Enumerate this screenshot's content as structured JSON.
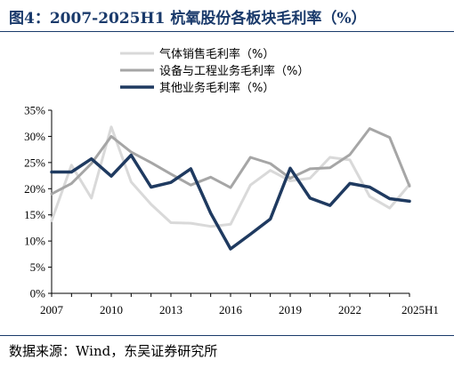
{
  "title": "图4：2007-2025H1 杭氧股份各板块毛利率（%）",
  "source": "数据来源：Wind，东吴证券研究所",
  "chart_data": {
    "type": "line",
    "x": [
      2007,
      2008,
      2009,
      2010,
      2011,
      2012,
      2013,
      2014,
      2015,
      2016,
      2017,
      2018,
      2019,
      2020,
      2021,
      2022,
      2023,
      2024,
      2025
    ],
    "xtick_labels": [
      "2007",
      "2010",
      "2013",
      "2016",
      "2019",
      "2022",
      "2025H1"
    ],
    "xtick_values": [
      2007,
      2010,
      2013,
      2016,
      2019,
      2022,
      2025
    ],
    "ylim": [
      0,
      35
    ],
    "yticks": [
      0,
      5,
      10,
      15,
      20,
      25,
      30,
      35
    ],
    "ytick_labels": [
      "0%",
      "5%",
      "10%",
      "15%",
      "20%",
      "25%",
      "30%",
      "35%"
    ],
    "legend_position": "top",
    "grid": false,
    "series": [
      {
        "name": "气体销售毛利率（%）",
        "color": "#d9d9d9",
        "values": [
          13.9,
          24.5,
          18.2,
          31.8,
          21.3,
          17.0,
          13.5,
          13.4,
          12.8,
          13.2,
          20.7,
          23.5,
          21.5,
          22.0,
          26.0,
          25.5,
          18.5,
          16.3,
          20.8
        ]
      },
      {
        "name": "设备与工程业务毛利率（%）",
        "color": "#a6a6a6",
        "values": [
          19.0,
          21.0,
          24.8,
          30.0,
          27.0,
          25.0,
          22.8,
          20.7,
          22.2,
          20.2,
          26.0,
          24.8,
          22.0,
          23.8,
          24.0,
          26.5,
          31.5,
          29.8,
          20.5
        ]
      },
      {
        "name": "其他业务毛利率（%）",
        "color": "#1f3a60",
        "values": [
          23.2,
          23.2,
          25.7,
          22.4,
          26.4,
          20.3,
          21.2,
          23.8,
          15.3,
          8.5,
          11.3,
          14.2,
          23.9,
          18.2,
          16.8,
          21.0,
          20.3,
          18.1,
          17.6
        ]
      }
    ]
  }
}
